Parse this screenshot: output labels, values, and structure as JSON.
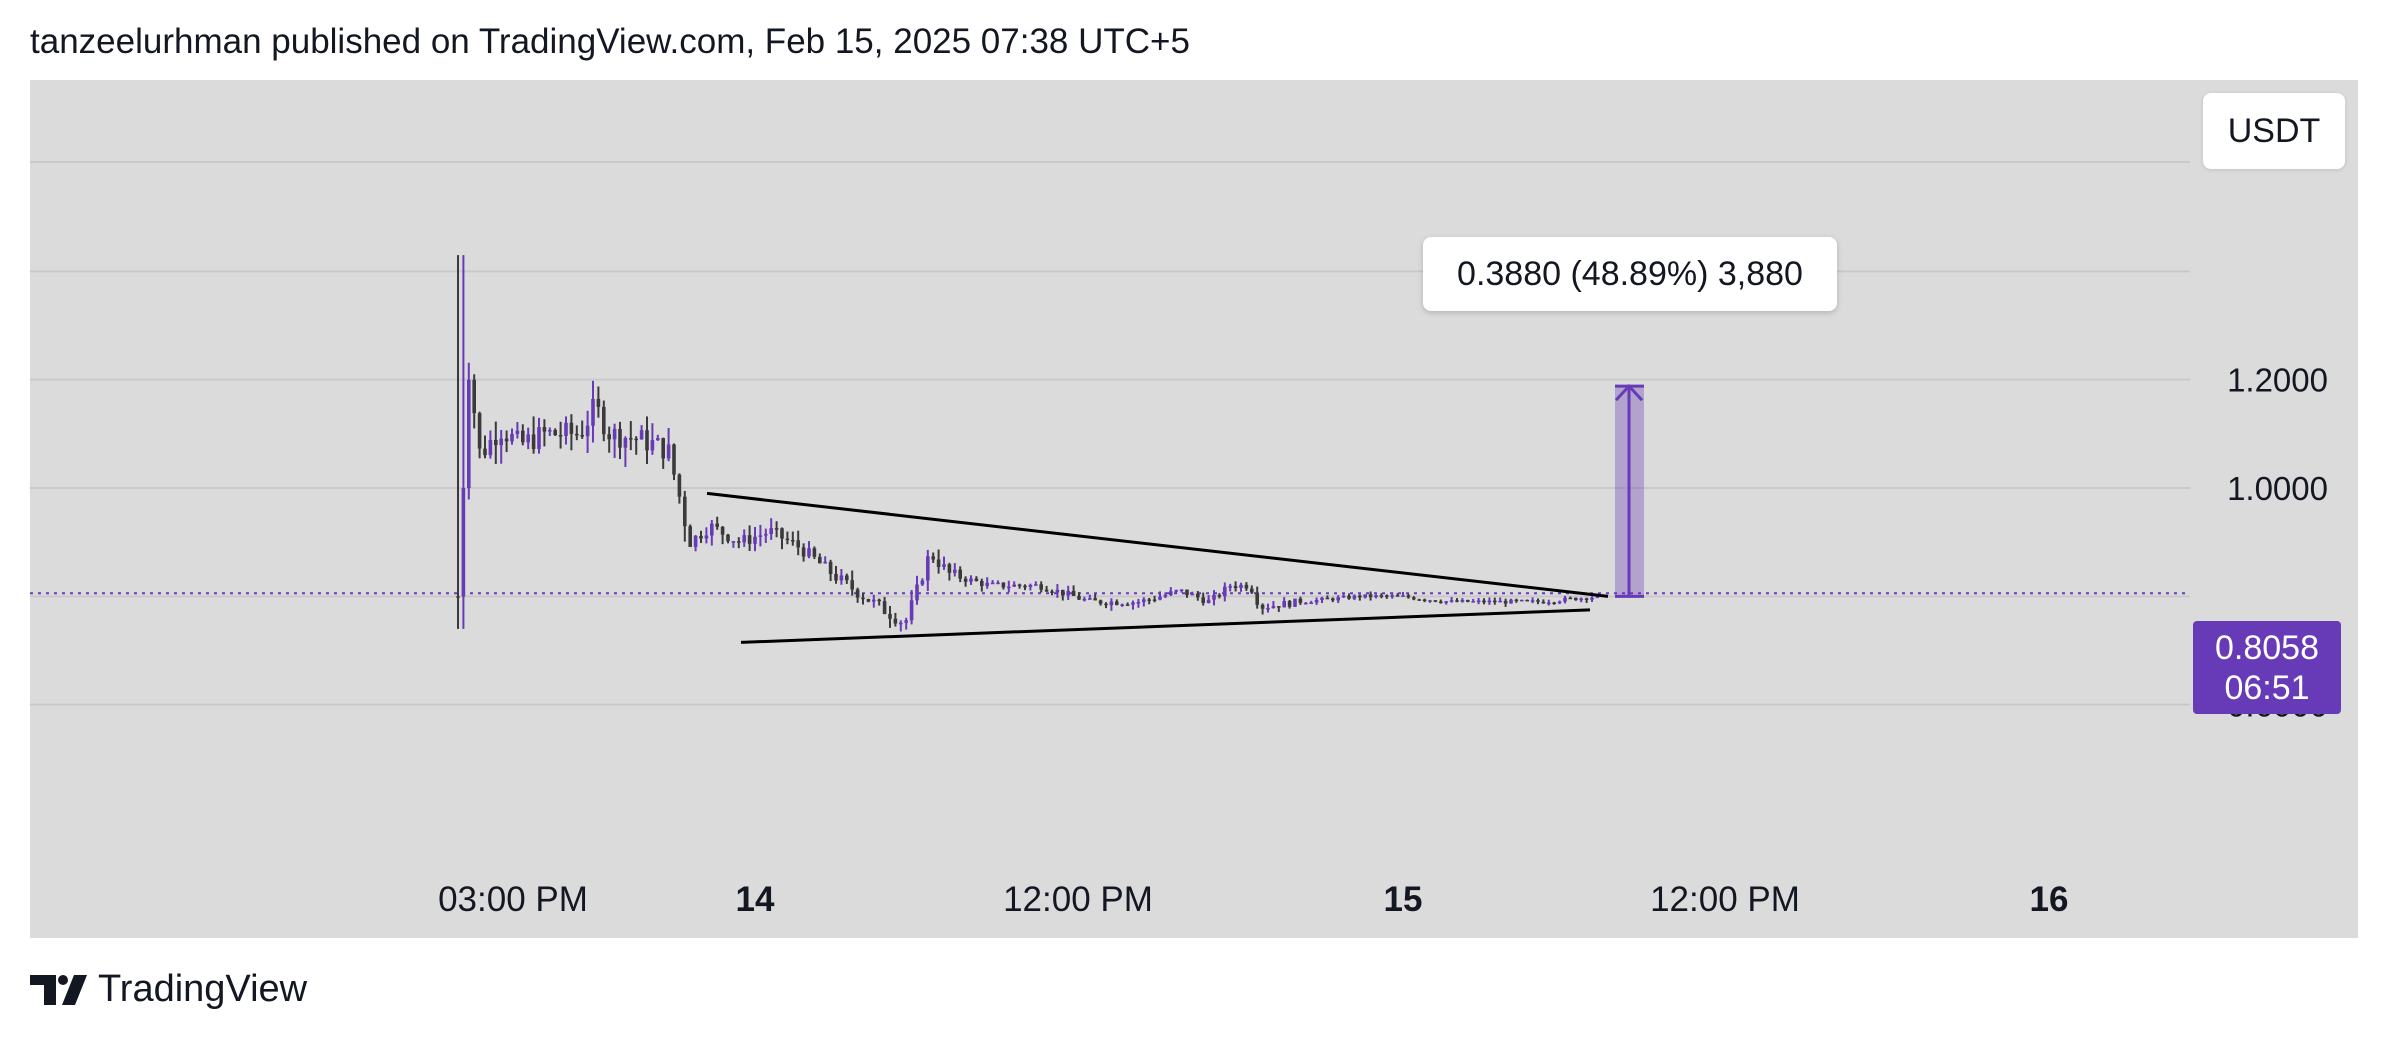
{
  "header": {
    "published_line": "tanzeelurhman published on TradingView.com, Feb 15, 2025 07:38 UTC+5"
  },
  "currency": "USDT",
  "last_price": {
    "value": "0.8058",
    "countdown": "06:51"
  },
  "measure": {
    "text": "0.3880 (48.89%) 3,880"
  },
  "footer": {
    "brand": "TradingView"
  },
  "colors": {
    "background": "#ffffff",
    "plot_background": "#dbdbdb",
    "grid": "#c9c9c9",
    "candle_up": "#673ab7",
    "candle_down": "#3a3a3a",
    "accent": "#673ab7",
    "trendline": "#000000"
  },
  "icons": {
    "brand_logo": "tradingview-logo-icon"
  },
  "chart_data": {
    "type": "candlestick",
    "y_axis": {
      "ticks": [
        "0.6000",
        "1.0000",
        "1.2000"
      ],
      "tick_values": [
        0.6,
        1.0,
        1.2
      ],
      "range": [
        0.585,
        1.2
      ]
    },
    "x_axis": {
      "labels": [
        {
          "text": "03:00 PM",
          "bold": false
        },
        {
          "text": "14",
          "bold": true
        },
        {
          "text": "12:00 PM",
          "bold": false
        },
        {
          "text": "15",
          "bold": true
        },
        {
          "text": "12:00 PM",
          "bold": false
        },
        {
          "text": "16",
          "bold": true
        }
      ]
    },
    "current_price": 0.8058,
    "triangle_pattern": {
      "upper_line": [
        [
          0,
          0.99
        ],
        [
          1,
          0.8
        ]
      ],
      "lower_line": [
        [
          0,
          0.715
        ],
        [
          1,
          0.775
        ]
      ]
    },
    "measurement": {
      "from": 0.8,
      "to": 1.188,
      "change": 0.388,
      "percent": 48.89,
      "ticks": 3880
    },
    "grid": true
  }
}
